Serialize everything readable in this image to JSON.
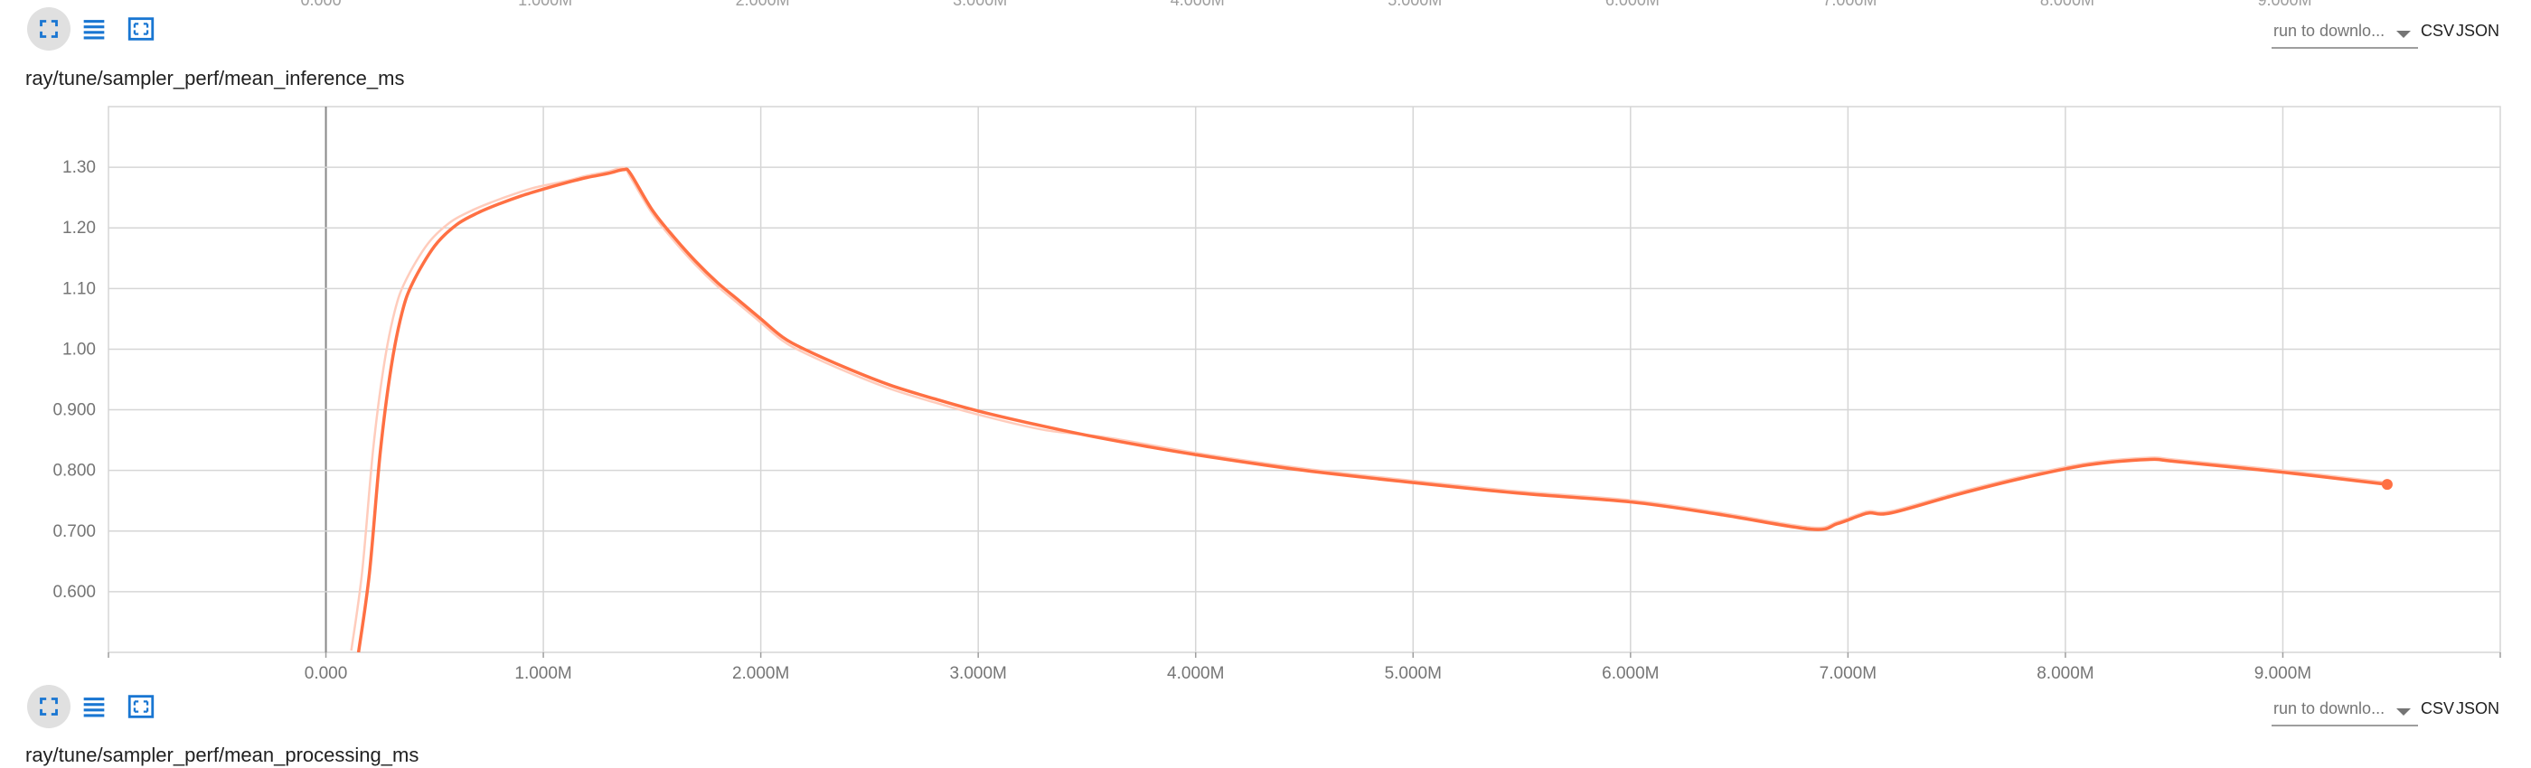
{
  "prev_chart": {
    "x_ticks_partial": [
      "0.000",
      "1.000M",
      "2.000M",
      "3.000M",
      "4.000M",
      "5.000M",
      "6.000M",
      "7.000M",
      "8.000M",
      "9.000M"
    ]
  },
  "cards": [
    {
      "title": "ray/tune/sampler_perf/mean_inference_ms",
      "run_select_value": "run to downlo...",
      "csv_label": "CSV",
      "json_label": "JSON",
      "icons": [
        "fullscreen-icon",
        "list-icon",
        "fit-domain-icon"
      ]
    },
    {
      "title": "ray/tune/sampler_perf/mean_processing_ms",
      "run_select_value": "run to downlo...",
      "csv_label": "CSV",
      "json_label": "JSON",
      "icons": [
        "fullscreen-icon",
        "list-icon",
        "fit-domain-icon"
      ]
    }
  ],
  "colors": {
    "series": "#ff7043",
    "series_raw": "#ffccbc",
    "grid": "#d6d6d6",
    "axis": "#9e9e9e",
    "icon_blue": "#1976d2"
  },
  "chart_data": {
    "type": "line",
    "title": "ray/tune/sampler_perf/mean_inference_ms",
    "x_tick_labels": [
      "0.000",
      "1.000M",
      "2.000M",
      "3.000M",
      "4.000M",
      "5.000M",
      "6.000M",
      "7.000M",
      "8.000M",
      "9.000M"
    ],
    "y_tick_labels": [
      "0.600",
      "0.700",
      "0.800",
      "0.900",
      "1.00",
      "1.10",
      "1.20",
      "1.30"
    ],
    "xlim": [
      -1000000,
      10000000
    ],
    "ylim": [
      0.5,
      1.4
    ],
    "grid": true,
    "series": [
      {
        "smoothed": true,
        "x": [
          150000,
          200000,
          250000,
          300000,
          350000,
          400000,
          500000,
          600000,
          700000,
          800000,
          900000,
          1000000,
          1100000,
          1200000,
          1300000,
          1370000,
          1400000,
          1500000,
          1600000,
          1700000,
          1800000,
          1900000,
          2000000,
          2100000,
          2200000,
          2400000,
          2600000,
          2800000,
          3000000,
          3300000,
          3600000,
          4000000,
          4500000,
          5000000,
          5500000,
          6000000,
          6400000,
          6830000,
          6950000,
          7050000,
          7100000,
          7200000,
          7500000,
          7800000,
          8100000,
          8380000,
          8500000,
          9000000,
          9480000
        ],
        "y": [
          0.5,
          0.63,
          0.83,
          0.97,
          1.06,
          1.11,
          1.17,
          1.205,
          1.225,
          1.24,
          1.253,
          1.264,
          1.274,
          1.283,
          1.29,
          1.296,
          1.29,
          1.23,
          1.185,
          1.145,
          1.11,
          1.08,
          1.05,
          1.02,
          1.0,
          0.968,
          0.94,
          0.918,
          0.898,
          0.873,
          0.851,
          0.826,
          0.8,
          0.78,
          0.762,
          0.748,
          0.728,
          0.703,
          0.712,
          0.725,
          0.73,
          0.73,
          0.76,
          0.787,
          0.809,
          0.818,
          0.815,
          0.797,
          0.777
        ]
      }
    ]
  }
}
